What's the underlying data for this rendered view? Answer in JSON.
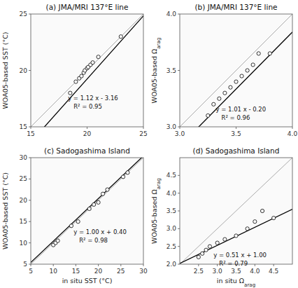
{
  "chart_data": [
    {
      "type": "scatter",
      "title": "(a) JMA/MRI 137°E line",
      "ylabel": "WOA05-based SST (°C)",
      "xlim": [
        15,
        25
      ],
      "ylim": [
        15,
        25
      ],
      "xticks": [
        15,
        20,
        25
      ],
      "yticks": [
        15,
        20,
        25
      ],
      "x": [
        18.5,
        19.0,
        19.3,
        19.5,
        19.7,
        19.8,
        20.0,
        20.1,
        20.3,
        20.5,
        21.0,
        23.0
      ],
      "values": [
        18.0,
        19.0,
        19.3,
        19.5,
        19.8,
        20.0,
        20.2,
        20.3,
        20.5,
        20.7,
        21.2,
        23.0
      ],
      "color": "black",
      "marker": "open-circle",
      "grid": false,
      "fit": {
        "slope": 1.12,
        "intercept": -3.16,
        "color": "black"
      },
      "reference_line": {
        "slope": 1,
        "intercept": 0,
        "color": "#aaaaaa"
      },
      "annotations": [
        {
          "text": "y = 1.12 x - 3.16",
          "x": 18.3,
          "y": 17.5
        },
        {
          "text": "R² = 0.95"
        }
      ]
    },
    {
      "type": "scatter",
      "title": "(b) JMA/MRI 137°E line",
      "ylabel": "WOA05-based Ωarag",
      "xlim": [
        3.0,
        4.0
      ],
      "ylim": [
        3.0,
        4.0
      ],
      "xticks": [
        {
          "value": 3.0,
          "label": "3.0"
        },
        3.5,
        {
          "value": 4.0,
          "label": "4.0"
        }
      ],
      "yticks": [
        {
          "value": 3.0,
          "label": "3.0"
        },
        3.5,
        {
          "value": 4.0,
          "label": "4.0"
        }
      ],
      "x": [
        3.25,
        3.3,
        3.35,
        3.4,
        3.45,
        3.5,
        3.55,
        3.6,
        3.65,
        3.7,
        3.8
      ],
      "values": [
        3.1,
        3.2,
        3.25,
        3.3,
        3.35,
        3.4,
        3.45,
        3.5,
        3.55,
        3.65,
        3.65
      ],
      "color": "black",
      "marker": "open-circle",
      "grid": false,
      "fit": {
        "slope": 1.01,
        "intercept": -0.2,
        "color": "black"
      },
      "reference_line": {
        "slope": 1,
        "intercept": 0,
        "color": "#aaaaaa"
      },
      "annotations": [
        {
          "text": "y = 1.01 x - 0.20",
          "x": 3.32,
          "y": 3.15
        },
        {
          "text": "R² = 0.96"
        }
      ]
    },
    {
      "type": "scatter",
      "title": "(c) Sadogashima Island",
      "xlabel": "in situ SST (°C)",
      "ylabel": "WOA05-based SST (°C)",
      "xlim": [
        5,
        30
      ],
      "ylim": [
        5,
        30
      ],
      "xticks": [
        5,
        10,
        15,
        20,
        25,
        30
      ],
      "yticks": [
        5,
        10,
        15,
        20,
        25,
        30
      ],
      "x": [
        10.0,
        10.5,
        11.0,
        14.0,
        15.5,
        18.0,
        19.0,
        20.0,
        21.0,
        22.0,
        25.5,
        26.5
      ],
      "values": [
        9.5,
        10.0,
        10.5,
        14.0,
        15.0,
        18.0,
        19.0,
        19.5,
        21.5,
        22.5,
        25.5,
        26.5
      ],
      "color": "black",
      "marker": "open-circle",
      "grid": false,
      "fit": {
        "slope": 1.0,
        "intercept": 0.4,
        "color": "black"
      },
      "reference_line": {
        "slope": 1,
        "intercept": 0,
        "color": "#aaaaaa"
      },
      "annotations": [
        {
          "text": "y = 1.00 x + 0.40",
          "x": 14.5,
          "y": 12.5
        },
        {
          "text": "R² = 0.98"
        }
      ]
    },
    {
      "type": "scatter",
      "title": "(d) Sadogashima Island",
      "xlabel": "in situ Ωarag",
      "ylabel": "WOA05-based Ωarag",
      "xlim": [
        2.0,
        5.0
      ],
      "ylim": [
        2.0,
        5.0
      ],
      "xticks": [
        2.5,
        {
          "value": 3.0,
          "label": "3.0"
        },
        3.5,
        {
          "value": 4.0,
          "label": "4.0"
        },
        4.5
      ],
      "yticks": [
        {
          "value": 2.0,
          "label": "2.0"
        },
        2.5,
        {
          "value": 3.0,
          "label": "3.0"
        },
        3.5,
        {
          "value": 4.0,
          "label": "4.0"
        },
        4.5
      ],
      "x": [
        2.5,
        2.6,
        2.7,
        2.8,
        3.0,
        3.2,
        3.5,
        3.8,
        4.0,
        4.2,
        4.5
      ],
      "values": [
        2.2,
        2.3,
        2.4,
        2.5,
        2.6,
        2.7,
        2.8,
        3.0,
        3.2,
        3.5,
        3.3
      ],
      "color": "black",
      "marker": "open-circle",
      "grid": false,
      "fit": {
        "slope": 0.51,
        "intercept": 1.0,
        "color": "black"
      },
      "reference_line": {
        "slope": 1,
        "intercept": 0,
        "color": "#aaaaaa"
      },
      "annotations": [
        {
          "text": "y = 0.51 x + 1.00",
          "x": 2.9,
          "y": 2.25
        },
        {
          "text": "R² = 0.79"
        }
      ]
    }
  ]
}
